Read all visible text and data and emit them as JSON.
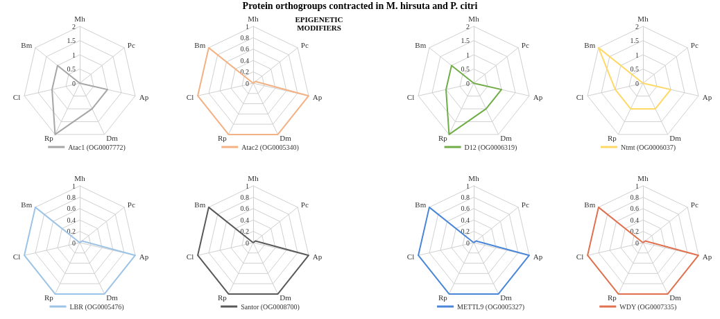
{
  "chart_data": [
    {
      "type": "radar",
      "title": "Protein orthogroups contracted in M. hirsuta and P. citri",
      "categories": [
        "Mh",
        "Pc",
        "Ap",
        "Dm",
        "Rp",
        "Cl",
        "Bm"
      ],
      "ylim": [
        0,
        2
      ],
      "yticks": [
        0,
        0.5,
        1,
        1.5,
        2
      ],
      "grid": true,
      "legend": "bottom",
      "series": [
        {
          "name": "Atac1 (OG0007772)",
          "color": "#a6a6a6",
          "values": [
            0,
            0,
            1,
            1,
            2,
            1,
            1
          ]
        }
      ]
    },
    {
      "type": "radar",
      "subtitle": "EPIGENETIC MODIFIERS",
      "categories": [
        "Mh",
        "Pc",
        "Ap",
        "Dm",
        "Rp",
        "Cl",
        "Bm"
      ],
      "ylim": [
        0,
        1
      ],
      "yticks": [
        0,
        0.2,
        0.4,
        0.6,
        0.8,
        1
      ],
      "grid": true,
      "legend": "bottom",
      "series": [
        {
          "name": "Atac2 (OG0005340)",
          "color": "#f4b183",
          "values": [
            0,
            0.05,
            1,
            1,
            1,
            1,
            1
          ]
        }
      ]
    },
    {
      "type": "radar",
      "categories": [
        "Mh",
        "Pc",
        "Ap",
        "Dm",
        "Rp",
        "Cl",
        "Bm"
      ],
      "ylim": [
        0,
        2
      ],
      "yticks": [
        0,
        0.5,
        1,
        1.5,
        2
      ],
      "grid": true,
      "legend": "bottom",
      "series": [
        {
          "name": "D12 (OG0006319)",
          "color": "#70ad47",
          "values": [
            0,
            0,
            1,
            1,
            2,
            1,
            1
          ]
        }
      ]
    },
    {
      "type": "radar",
      "categories": [
        "Mh",
        "Pc",
        "Ap",
        "Dm",
        "Rp",
        "Cl",
        "Bm"
      ],
      "ylim": [
        0,
        2
      ],
      "yticks": [
        0,
        0.5,
        1,
        1.5,
        2
      ],
      "grid": true,
      "legend": "bottom",
      "series": [
        {
          "name": "Ntmt (OG0006037)",
          "color": "#ffd966",
          "values": [
            0,
            0,
            1,
            1,
            1,
            1,
            2
          ]
        }
      ]
    },
    {
      "type": "radar",
      "categories": [
        "Mh",
        "Pc",
        "Ap",
        "Dm",
        "Rp",
        "Cl",
        "Bm"
      ],
      "ylim": [
        0,
        1
      ],
      "yticks": [
        0,
        0.2,
        0.4,
        0.6,
        0.8,
        1
      ],
      "grid": true,
      "legend": "bottom",
      "series": [
        {
          "name": "LBR (OG0005476)",
          "color": "#9dc3e6",
          "values": [
            0,
            0.05,
            1,
            1,
            1,
            1,
            1
          ]
        }
      ]
    },
    {
      "type": "radar",
      "categories": [
        "Mh",
        "Pc",
        "Ap",
        "Dm",
        "Rp",
        "Cl",
        "Bm"
      ],
      "ylim": [
        0,
        1
      ],
      "yticks": [
        0,
        0.2,
        0.4,
        0.6,
        0.8,
        1
      ],
      "grid": true,
      "legend": "bottom",
      "series": [
        {
          "name": "Santor (OG0008700)",
          "color": "#595959",
          "values": [
            0,
            0.05,
            1,
            1,
            1,
            1,
            1
          ]
        }
      ]
    },
    {
      "type": "radar",
      "categories": [
        "Mh",
        "Pc",
        "Ap",
        "Dm",
        "Rp",
        "Cl",
        "Bm"
      ],
      "ylim": [
        0,
        1
      ],
      "yticks": [
        0,
        0.2,
        0.4,
        0.6,
        0.8,
        1
      ],
      "grid": true,
      "legend": "bottom",
      "series": [
        {
          "name": "METTL9 (OG0005327)",
          "color": "#4a86d8",
          "values": [
            0,
            0.05,
            1,
            1,
            1,
            1,
            1
          ]
        }
      ]
    },
    {
      "type": "radar",
      "categories": [
        "Mh",
        "Pc",
        "Ap",
        "Dm",
        "Rp",
        "Cl",
        "Bm"
      ],
      "ylim": [
        0,
        1
      ],
      "yticks": [
        0,
        0.2,
        0.4,
        0.6,
        0.8,
        1
      ],
      "grid": true,
      "legend": "bottom",
      "series": [
        {
          "name": "WDY (OG0007335)",
          "color": "#e0704e",
          "values": [
            0,
            0.05,
            1,
            1,
            1,
            1,
            1
          ]
        }
      ]
    }
  ]
}
